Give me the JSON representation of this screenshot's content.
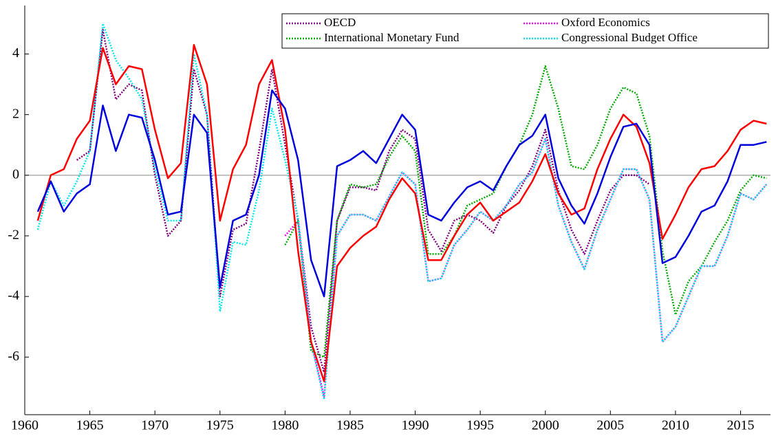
{
  "chart_data": {
    "type": "line",
    "x": [
      1961,
      1962,
      1963,
      1964,
      1965,
      1966,
      1967,
      1968,
      1969,
      1970,
      1971,
      1972,
      1973,
      1974,
      1975,
      1976,
      1977,
      1978,
      1979,
      1980,
      1981,
      1982,
      1983,
      1984,
      1985,
      1986,
      1987,
      1988,
      1989,
      1990,
      1991,
      1992,
      1993,
      1994,
      1995,
      1996,
      1997,
      1998,
      1999,
      2000,
      2001,
      2002,
      2003,
      2004,
      2005,
      2006,
      2007,
      2008,
      2009,
      2010,
      2011,
      2012,
      2013,
      2014,
      2015,
      2016,
      2017
    ],
    "xlim": [
      1960,
      2017.3
    ],
    "xticks": [
      1960,
      1965,
      1970,
      1975,
      1980,
      1985,
      1990,
      1995,
      2000,
      2005,
      2010,
      2015
    ],
    "ylim": [
      -7.9,
      5.6
    ],
    "yticks": [
      -6,
      -4,
      -2,
      0,
      2,
      4
    ],
    "legend": "top-right",
    "series": [
      {
        "color": "#ff0000",
        "linestyle": "solid",
        "values": [
          -1.5,
          0.0,
          0.2,
          1.2,
          1.8,
          4.2,
          3.0,
          3.6,
          3.5,
          1.5,
          -0.1,
          0.4,
          4.3,
          3.0,
          -1.5,
          0.2,
          1.0,
          3.0,
          3.8,
          1.5,
          -2.5,
          -5.5,
          -6.8,
          -3.0,
          -2.4,
          -2.0,
          -1.7,
          -0.8,
          -0.1,
          -0.6,
          -2.8,
          -2.8,
          -2.0,
          -1.3,
          -0.9,
          -1.5,
          -1.2,
          -0.9,
          -0.2,
          0.7,
          -0.6,
          -1.3,
          -1.1,
          0.2,
          1.2,
          2.0,
          1.6,
          0.4,
          -2.1,
          -1.3,
          -0.4,
          0.2,
          0.3,
          0.8,
          1.5,
          1.8,
          1.7
        ]
      },
      {
        "color": "#0000dd",
        "linestyle": "solid",
        "values": [
          -1.2,
          -0.2,
          -1.2,
          -0.6,
          -0.3,
          2.3,
          0.8,
          2.0,
          1.9,
          0.5,
          -1.3,
          -1.2,
          2.0,
          1.4,
          -3.7,
          -1.5,
          -1.3,
          0.0,
          2.8,
          2.2,
          0.5,
          -2.8,
          -4.0,
          0.3,
          0.5,
          0.8,
          0.4,
          1.2,
          2.0,
          1.5,
          -1.3,
          -1.5,
          -0.9,
          -0.4,
          -0.2,
          -0.5,
          0.3,
          1.0,
          1.3,
          2.0,
          -0.1,
          -1.0,
          -1.6,
          -0.6,
          0.6,
          1.6,
          1.7,
          1.0,
          -2.9,
          -2.7,
          -2.0,
          -1.2,
          -1.0,
          -0.2,
          1.0,
          1.0,
          1.1
        ]
      },
      {
        "name": "OECD",
        "color": "#800080",
        "linestyle": "dotted",
        "values": [
          null,
          null,
          null,
          0.5,
          0.8,
          4.8,
          2.5,
          3.0,
          2.8,
          0.0,
          -2.0,
          -1.5,
          3.5,
          2.0,
          -4.0,
          -1.8,
          -1.6,
          0.8,
          3.5,
          1.0,
          -1.5,
          -5.0,
          -6.5,
          -1.5,
          -0.4,
          -0.4,
          -0.5,
          0.8,
          1.5,
          1.2,
          -1.8,
          -2.5,
          -1.5,
          -1.3,
          -1.5,
          -1.9,
          -1.0,
          -0.5,
          0.3,
          1.5,
          -0.5,
          -1.8,
          -2.6,
          -1.5,
          -0.5,
          0.0,
          0.0,
          -0.3,
          null,
          null,
          null,
          null,
          null,
          null,
          null,
          null,
          null
        ]
      },
      {
        "name": "Oxford Economics",
        "color": "#ff00ff",
        "linestyle": "dotted",
        "values": [
          null,
          null,
          null,
          null,
          null,
          null,
          null,
          null,
          null,
          null,
          null,
          null,
          null,
          null,
          null,
          null,
          null,
          null,
          null,
          -2.0,
          -1.5,
          -5.5,
          -7.3,
          -2.0,
          -1.3,
          -1.3,
          -1.5,
          -0.7,
          0.1,
          -0.3,
          -3.5,
          -3.4,
          -2.3,
          -1.8,
          -1.2,
          -1.5,
          -1.0,
          -0.3,
          0.1,
          1.2,
          -1.0,
          -2.2,
          -3.1,
          -1.8,
          -0.8,
          0.2,
          0.2,
          -0.8,
          -5.5,
          -5.0,
          -4.0,
          -3.0,
          -3.0,
          -2.0,
          -0.6,
          -0.8,
          -0.3
        ]
      },
      {
        "name": "International Monetary Fund",
        "color": "#00aa00",
        "linestyle": "dotted",
        "values": [
          null,
          null,
          null,
          null,
          null,
          null,
          null,
          null,
          null,
          null,
          null,
          null,
          null,
          null,
          null,
          null,
          null,
          null,
          null,
          -2.3,
          -1.5,
          -5.8,
          -6.0,
          -1.5,
          -0.3,
          -0.4,
          -0.3,
          0.6,
          1.3,
          0.8,
          -2.6,
          -2.6,
          -2.0,
          -1.0,
          -0.8,
          -0.6,
          0.3,
          1.0,
          2.0,
          3.6,
          2.2,
          0.3,
          0.2,
          1.0,
          2.2,
          2.9,
          2.7,
          1.3,
          -2.5,
          -4.6,
          -3.5,
          -3.0,
          -2.2,
          -1.5,
          -0.5,
          0.0,
          -0.1
        ]
      },
      {
        "name": "Congressional Budget Office",
        "color": "#00e5ee",
        "linestyle": "dotted",
        "values": [
          -1.8,
          -0.2,
          -1.0,
          -0.2,
          0.8,
          5.0,
          3.8,
          3.2,
          2.5,
          0.2,
          -1.5,
          -1.5,
          4.0,
          2.0,
          -4.5,
          -2.2,
          -2.3,
          -0.5,
          2.2,
          0.5,
          -1.4,
          -5.5,
          -7.4,
          -2.0,
          -1.3,
          -1.3,
          -1.5,
          -0.7,
          0.1,
          -0.3,
          -3.5,
          -3.4,
          -2.3,
          -1.8,
          -1.2,
          -1.5,
          -1.0,
          -0.3,
          0.1,
          1.2,
          -1.0,
          -2.2,
          -3.1,
          -1.8,
          -0.8,
          0.2,
          0.2,
          -0.8,
          -5.5,
          -5.0,
          -4.0,
          -3.0,
          -3.0,
          -2.0,
          -0.6,
          -0.8,
          -0.3
        ]
      }
    ]
  }
}
